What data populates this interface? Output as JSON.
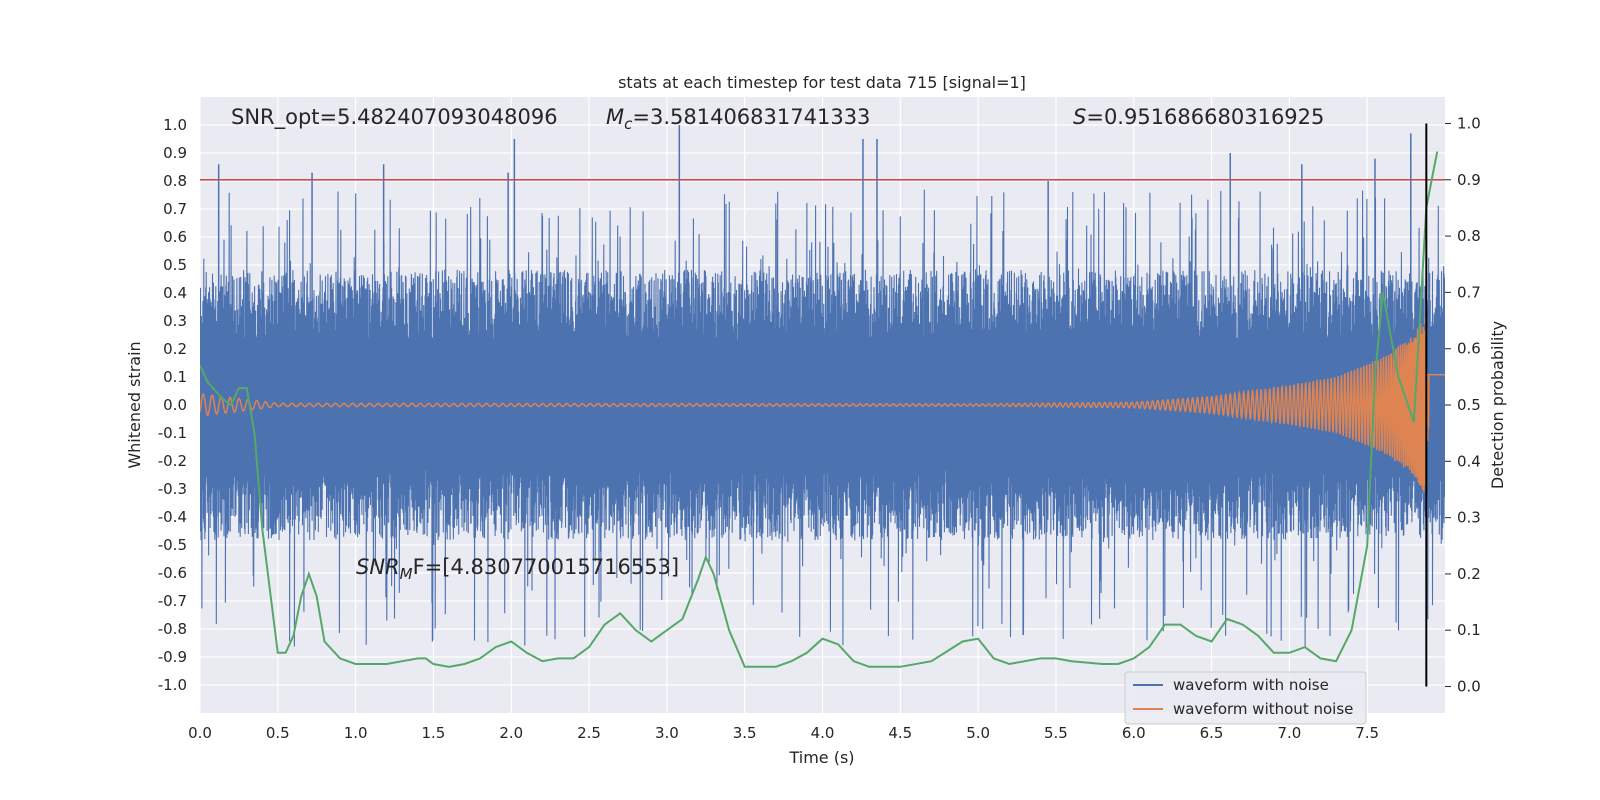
{
  "chart_data": {
    "type": "line",
    "title": "stats at each timestep for test data 715 [signal=1]",
    "xlabel": "Time (s)",
    "ylabel": "Whitened strain",
    "ylabel_right": "Detection probability",
    "xlim": [
      0.0,
      8.0
    ],
    "ylim": [
      -1.1,
      1.1
    ],
    "ylim_right": [
      -0.047,
      1.047
    ],
    "x_ticks": [
      "0.0",
      "0.5",
      "1.0",
      "1.5",
      "2.0",
      "2.5",
      "3.0",
      "3.5",
      "4.0",
      "4.5",
      "5.0",
      "5.5",
      "6.0",
      "6.5",
      "7.0",
      "7.5"
    ],
    "y_ticks": [
      "1.0",
      "0.9",
      "0.8",
      "0.7",
      "0.6",
      "0.5",
      "0.4",
      "0.3",
      "0.2",
      "0.1",
      "0.0",
      "-0.1",
      "-0.2",
      "-0.3",
      "-0.4",
      "-0.5",
      "-0.6",
      "-0.7",
      "-0.8",
      "-0.9",
      "-1.0"
    ],
    "y_ticks_right": [
      "1.0",
      "0.9",
      "0.8",
      "0.7",
      "0.6",
      "0.5",
      "0.4",
      "0.3",
      "0.2",
      "0.1",
      "0.0"
    ],
    "grid": true,
    "legend_position": "lower-right",
    "threshold": {
      "y_right": 0.9,
      "color": "#c44e52"
    },
    "vline": {
      "x": 7.88,
      "color": "#000000"
    },
    "annotations": {
      "snr_opt": "SNR_opt=5.482407093048096",
      "mc_symbol": "M",
      "mc_sub": "c",
      "mc_value": "=3.581406831741333",
      "s_symbol": "S",
      "s_value": "=0.951686680316925",
      "snr_mf_symbol": "SNR",
      "snr_mf_sub": "M",
      "snr_mf_value": "F=[4.830770015716553]"
    },
    "series": [
      {
        "name": "waveform with noise",
        "color": "#4c72b0",
        "noise_envelope": 0.42,
        "spike_peaks_x": [
          0.12,
          0.72,
          1.18,
          1.98,
          2.02,
          3.08,
          4.26,
          4.35,
          5.45,
          6.62,
          7.08,
          7.55,
          7.78
        ],
        "spike_peaks_y": [
          0.86,
          0.83,
          0.86,
          0.83,
          0.95,
          1.0,
          0.95,
          0.95,
          0.8,
          0.9,
          0.86,
          0.88,
          0.97
        ]
      },
      {
        "name": "waveform without noise",
        "color": "#dd8452",
        "amplitude_x": [
          0.0,
          0.3,
          0.5,
          5.0,
          6.0,
          6.5,
          7.0,
          7.3,
          7.6,
          7.8,
          7.88
        ],
        "amplitude_y": [
          0.04,
          0.02,
          0.006,
          0.004,
          0.01,
          0.03,
          0.07,
          0.1,
          0.17,
          0.25,
          0.33
        ]
      },
      {
        "name": "Detection probability",
        "color": "#55a868",
        "axis": "right",
        "x": [
          0.0,
          0.05,
          0.15,
          0.2,
          0.25,
          0.3,
          0.35,
          0.4,
          0.45,
          0.5,
          0.55,
          0.6,
          0.65,
          0.7,
          0.75,
          0.8,
          0.9,
          1.0,
          1.1,
          1.2,
          1.3,
          1.4,
          1.45,
          1.5,
          1.6,
          1.7,
          1.8,
          1.9,
          2.0,
          2.1,
          2.2,
          2.3,
          2.4,
          2.5,
          2.6,
          2.7,
          2.8,
          2.9,
          3.0,
          3.1,
          3.2,
          3.25,
          3.3,
          3.4,
          3.5,
          3.6,
          3.7,
          3.8,
          3.9,
          4.0,
          4.1,
          4.2,
          4.3,
          4.5,
          4.7,
          4.9,
          5.0,
          5.1,
          5.2,
          5.3,
          5.4,
          5.5,
          5.6,
          5.8,
          5.9,
          6.0,
          6.1,
          6.2,
          6.3,
          6.4,
          6.5,
          6.6,
          6.7,
          6.8,
          6.9,
          7.0,
          7.1,
          7.2,
          7.3,
          7.4,
          7.5,
          7.55,
          7.6,
          7.7,
          7.8,
          7.88,
          7.95
        ],
        "y": [
          0.57,
          0.54,
          0.51,
          0.5,
          0.53,
          0.53,
          0.45,
          0.28,
          0.17,
          0.06,
          0.06,
          0.09,
          0.16,
          0.2,
          0.16,
          0.08,
          0.05,
          0.04,
          0.04,
          0.04,
          0.045,
          0.05,
          0.05,
          0.04,
          0.035,
          0.04,
          0.05,
          0.07,
          0.08,
          0.06,
          0.045,
          0.05,
          0.05,
          0.07,
          0.11,
          0.13,
          0.1,
          0.08,
          0.1,
          0.12,
          0.19,
          0.23,
          0.2,
          0.1,
          0.035,
          0.035,
          0.035,
          0.045,
          0.06,
          0.085,
          0.075,
          0.045,
          0.035,
          0.035,
          0.045,
          0.08,
          0.085,
          0.05,
          0.04,
          0.045,
          0.05,
          0.05,
          0.045,
          0.04,
          0.04,
          0.05,
          0.07,
          0.11,
          0.11,
          0.09,
          0.08,
          0.12,
          0.11,
          0.09,
          0.06,
          0.06,
          0.07,
          0.05,
          0.045,
          0.1,
          0.25,
          0.55,
          0.7,
          0.55,
          0.47,
          0.85,
          0.95
        ]
      }
    ]
  }
}
